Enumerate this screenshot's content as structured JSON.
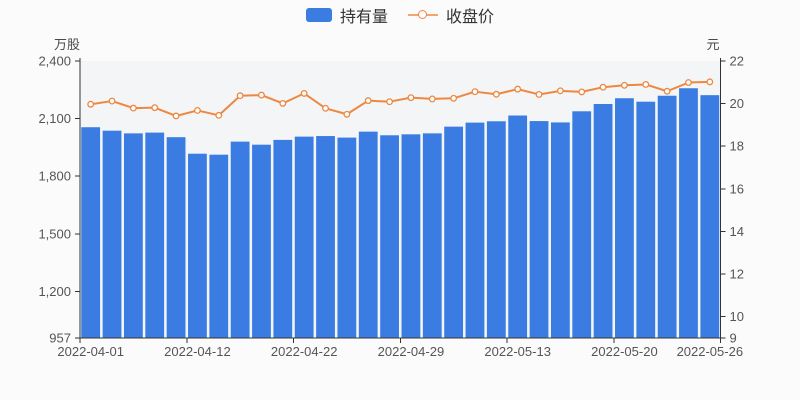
{
  "colors": {
    "page_background": "#fbfbfb",
    "plot_background": "#f3f5f7",
    "axis_line": "#333333",
    "tick_text": "#555555",
    "bar_blue": "#3a7ce2",
    "line_orange": "#ee8840"
  },
  "chart_data": {
    "type": "bar",
    "subtype": "bar+line dual-axis combo",
    "num_points": 30,
    "grid": false,
    "legend_position": "top-center",
    "x_tick_labels": [
      {
        "index": 0,
        "label": "2022-04-01"
      },
      {
        "index": 5,
        "label": "2022-04-12"
      },
      {
        "index": 10,
        "label": "2022-04-22"
      },
      {
        "index": 15,
        "label": "2022-04-29"
      },
      {
        "index": 20,
        "label": "2022-05-13"
      },
      {
        "index": 25,
        "label": "2022-05-20"
      },
      {
        "index": 29,
        "label": "2022-05-26"
      }
    ],
    "left_axis": {
      "unit": "万股",
      "min": 957,
      "max": 2400,
      "tick_values": [
        957,
        1200,
        1500,
        1800,
        2100,
        2400
      ],
      "tick_labels": [
        "957",
        "1,200",
        "1,500",
        "1,800",
        "2,100",
        "2,400"
      ]
    },
    "right_axis": {
      "unit": "元",
      "min": 9,
      "max": 22,
      "tick_values": [
        9,
        10,
        12,
        14,
        16,
        18,
        20,
        22
      ],
      "tick_labels": [
        "9",
        "10",
        "12",
        "14",
        "16",
        "18",
        "20",
        "22"
      ]
    },
    "series": [
      {
        "name": "持有量",
        "type": "bar",
        "axis": "left",
        "color": "#3a7ce2",
        "values": [
          2055,
          2037,
          2023,
          2027,
          2003,
          1917,
          1912,
          1980,
          1964,
          1989,
          2006,
          2009,
          2001,
          2032,
          2013,
          2018,
          2023,
          2058,
          2079,
          2086,
          2116,
          2087,
          2080,
          2138,
          2176,
          2206,
          2188,
          2219,
          2258,
          2222
        ]
      },
      {
        "name": "收盘价",
        "type": "line",
        "axis": "right",
        "color": "#ee8840",
        "marker": "hollow-circle",
        "values": [
          19.97,
          20.12,
          19.79,
          19.81,
          19.42,
          19.68,
          19.45,
          20.37,
          20.4,
          20.01,
          20.48,
          19.78,
          19.5,
          20.14,
          20.09,
          20.28,
          20.22,
          20.25,
          20.56,
          20.44,
          20.68,
          20.43,
          20.6,
          20.55,
          20.77,
          20.86,
          20.9,
          20.58,
          20.99,
          21.02
        ]
      }
    ]
  }
}
